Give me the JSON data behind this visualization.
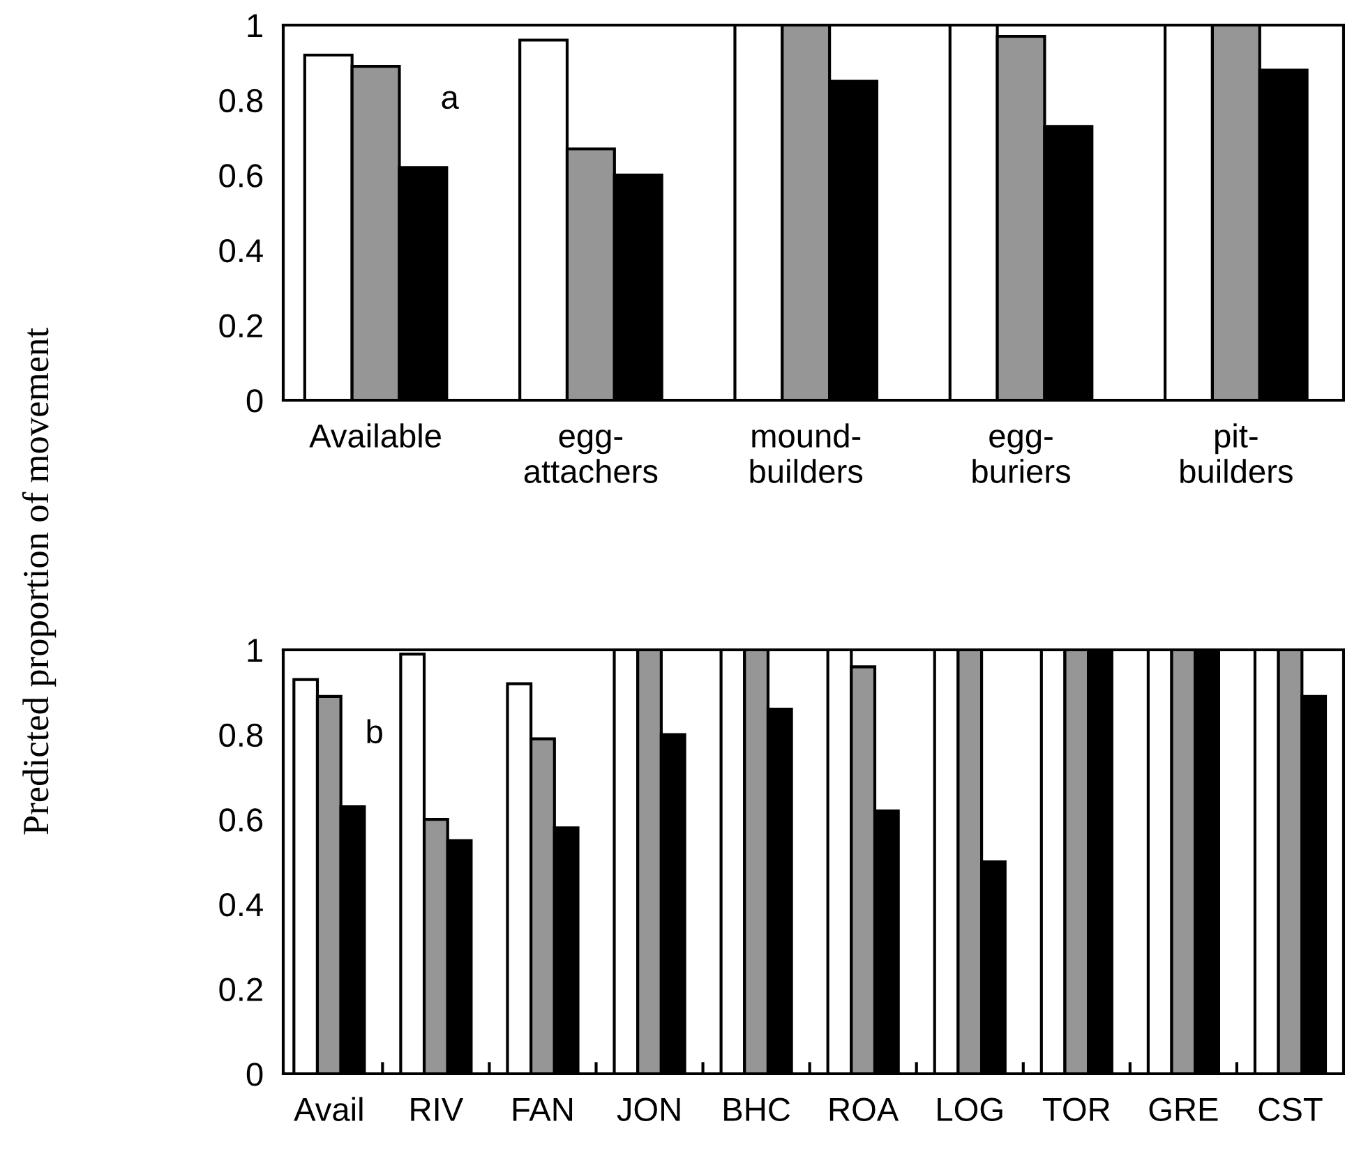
{
  "chart_data": [
    {
      "type": "bar",
      "ylabel": "Predicted proportion of movement",
      "categories": [
        "Available",
        "egg-\nattachers",
        "mound-\nbuilders",
        "egg-\nburiers",
        "pit-\nbuilders"
      ],
      "series": [
        {
          "color": "#ffffff",
          "values": [
            0.92,
            0.96,
            1,
            1,
            1
          ]
        },
        {
          "color": "#969696",
          "values": [
            0.89,
            0.67,
            1,
            0.97,
            1
          ]
        },
        {
          "color": "#000000",
          "values": [
            0.62,
            0.6,
            0.85,
            0.73,
            0.88
          ]
        }
      ],
      "ylim": [
        0,
        1
      ],
      "yticks": [
        0,
        0.2,
        0.4,
        0.6,
        0.8,
        1
      ],
      "grid": false,
      "legend": false,
      "annotations": [
        "a"
      ]
    },
    {
      "type": "bar",
      "categories": [
        "Avail",
        "RIV",
        "FAN",
        "JON",
        "BHC",
        "ROA",
        "LOG",
        "TOR",
        "GRE",
        "CST"
      ],
      "series": [
        {
          "color": "#ffffff",
          "values": [
            0.93,
            0.99,
            0.92,
            1,
            1,
            1,
            1,
            1,
            1,
            1
          ]
        },
        {
          "color": "#969696",
          "values": [
            0.89,
            0.6,
            0.79,
            1,
            1,
            0.96,
            1,
            1,
            1,
            1
          ]
        },
        {
          "color": "#000000",
          "values": [
            0.63,
            0.55,
            0.58,
            0.8,
            0.86,
            0.62,
            0.5,
            1,
            1,
            0.89
          ]
        }
      ],
      "ylim": [
        0,
        1
      ],
      "yticks": [
        0,
        0.2,
        0.4,
        0.6,
        0.8,
        1
      ],
      "grid": false,
      "legend": false,
      "annotations": [
        "b"
      ]
    }
  ]
}
